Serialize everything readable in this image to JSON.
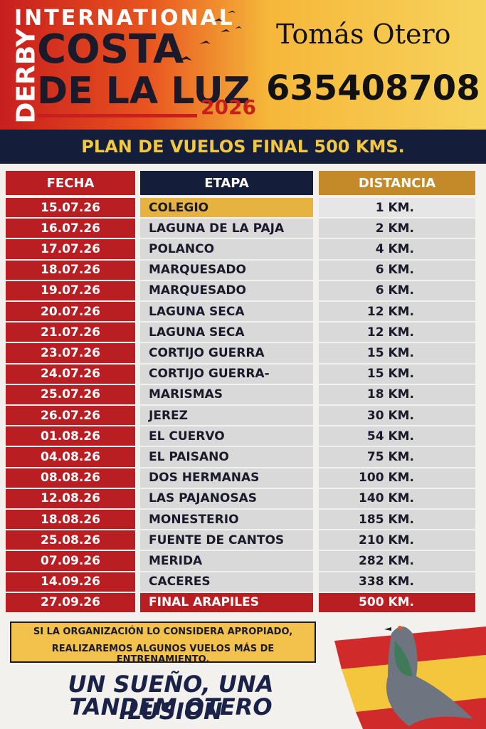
{
  "header": {
    "brand_top": "INTERNATIONAL",
    "brand_side": "DERBY",
    "brand_line1": "COSTA",
    "brand_line2": "DE LA LUZ",
    "year": "2026",
    "owner": "Tomás Otero",
    "phone": "635408708"
  },
  "banner": "PLAN DE VUELOS FINAL 500 KMS.",
  "table": {
    "headers": [
      "FECHA",
      "ETAPA",
      "DISTANCIA"
    ],
    "rows": [
      [
        "15.07.26",
        "COLEGIO",
        "1 KM."
      ],
      [
        "16.07.26",
        "LAGUNA DE LA PAJA",
        "2 KM."
      ],
      [
        "17.07.26",
        "POLANCO",
        "4 KM."
      ],
      [
        "18.07.26",
        "MARQUESADO",
        "6 KM."
      ],
      [
        "19.07.26",
        "MARQUESADO",
        "6 KM."
      ],
      [
        "20.07.26",
        "LAGUNA SECA",
        "12 KM."
      ],
      [
        "21.07.26",
        "LAGUNA SECA",
        "12 KM."
      ],
      [
        "23.07.26",
        "CORTIJO GUERRA",
        "15 KM."
      ],
      [
        "24.07.26",
        "CORTIJO GUERRA-",
        "15 KM."
      ],
      [
        "25.07.26",
        "MARISMAS",
        "18 KM."
      ],
      [
        "26.07.26",
        "JEREZ",
        "30 KM."
      ],
      [
        "01.08.26",
        "EL CUERVO",
        "54 KM."
      ],
      [
        "04.08.26",
        "EL PAISANO",
        "75 KM."
      ],
      [
        "08.08.26",
        "DOS HERMANAS",
        "100 KM."
      ],
      [
        "12.08.26",
        "LAS PAJANOSAS",
        "140 KM."
      ],
      [
        "18.08.26",
        "MONESTERIO",
        "185 KM."
      ],
      [
        "25.08.26",
        "FUENTE DE CANTOS",
        "210 KM."
      ],
      [
        "07.09.26",
        "MERIDA",
        "282 KM."
      ],
      [
        "14.09.26",
        "CACERES",
        "338 KM."
      ],
      [
        "27.09.26",
        "FINAL ARAPILES",
        "500 KM."
      ]
    ]
  },
  "note": [
    "SI LA ORGANIZACIÓN LO CONSIDERA APROPIADO,",
    "REALIZAREMOS ALGUNOS VUELOS MÁS DE ENTRENAMIENTO."
  ],
  "slogan": [
    "UN SUEÑO, UNA ILUSIÓN",
    "TANDEM OTERO"
  ]
}
